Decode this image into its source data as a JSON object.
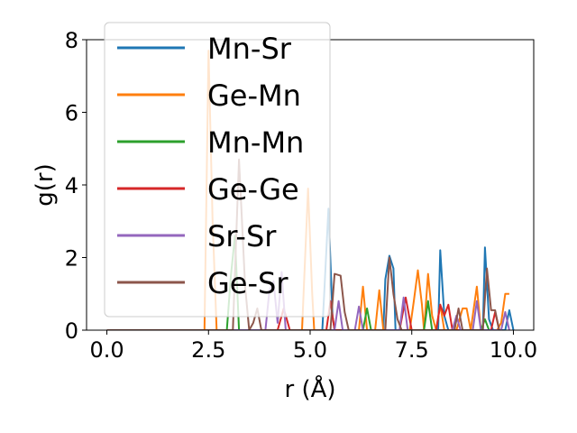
{
  "chart_data": {
    "type": "line",
    "title": "",
    "xlabel": "r (Å)",
    "ylabel": "g(r)",
    "xlim": [
      -0.5,
      10.5
    ],
    "ylim": [
      0,
      8
    ],
    "xticks": [
      0.0,
      2.5,
      5.0,
      7.5,
      10.0
    ],
    "xtick_labels": [
      "0.0",
      "2.5",
      "5.0",
      "7.5",
      "10.0"
    ],
    "yticks": [
      0,
      2,
      4,
      6,
      8
    ],
    "ytick_labels": [
      "0",
      "2",
      "4",
      "6",
      "8"
    ],
    "grid": false,
    "legend_position": "upper-left",
    "series": [
      {
        "name": "Mn-Sr",
        "color": "#1f77b4",
        "x": [
          0,
          5.2,
          5.3,
          5.35,
          5.45,
          5.55,
          5.6,
          6.8,
          6.85,
          6.95,
          7.05,
          7.1,
          8.15,
          8.2,
          8.3,
          8.4,
          9.25,
          9.3,
          9.4,
          9.5,
          9.8,
          9.9,
          10.0
        ],
        "y": [
          0,
          0,
          0,
          1.1,
          3.35,
          0.4,
          0,
          0,
          1.4,
          2.05,
          1.7,
          0,
          0,
          2.2,
          0.4,
          0,
          0,
          2.28,
          0.3,
          0,
          0,
          0.55,
          0
        ]
      },
      {
        "name": "Ge-Mn",
        "color": "#ff7f0e",
        "x": [
          0,
          2.4,
          2.5,
          2.6,
          2.7,
          4.8,
          4.95,
          5.05,
          5.1,
          6.2,
          6.3,
          6.4,
          6.6,
          6.7,
          6.8,
          7.45,
          7.55,
          7.65,
          7.75,
          7.8,
          7.9,
          8.0,
          8.1,
          8.2,
          8.3,
          8.6,
          8.75,
          8.85,
          8.95,
          9.1,
          9.2,
          9.3,
          9.6,
          9.7,
          9.8,
          9.9
        ],
        "y": [
          0,
          0,
          7.7,
          3.0,
          0,
          0,
          3.9,
          1.0,
          0,
          0,
          1.2,
          0,
          0,
          1.1,
          0,
          0,
          0.8,
          1.65,
          0.7,
          0,
          1.55,
          0.4,
          0,
          0.7,
          0,
          0,
          0.6,
          0.6,
          0,
          1.2,
          0,
          0,
          0,
          0.2,
          1.0,
          1.0
        ]
      },
      {
        "name": "Mn-Mn",
        "color": "#2ca02c",
        "x": [
          0,
          2.95,
          3.05,
          3.15,
          3.25,
          6.3,
          6.4,
          6.5,
          7.8,
          7.9,
          8.0,
          9.2,
          9.3,
          9.4
        ],
        "y": [
          0,
          0,
          1.5,
          2.6,
          0,
          0,
          0.6,
          0,
          0,
          0.8,
          0,
          0,
          0.3,
          0
        ]
      },
      {
        "name": "Ge-Ge",
        "color": "#d62728",
        "x": [
          0,
          4.2,
          4.35,
          4.5,
          5.4,
          5.5,
          5.6,
          7.2,
          7.35,
          7.5,
          8.1,
          8.2,
          8.3,
          8.4,
          8.5,
          9.45,
          9.55,
          9.65
        ],
        "y": [
          0,
          0,
          0.6,
          0,
          0,
          0.8,
          0,
          0,
          0.9,
          0,
          0,
          0.7,
          0.4,
          0.7,
          0,
          0,
          0.5,
          0
        ]
      },
      {
        "name": "Sr-Sr",
        "color": "#9467bd",
        "x": [
          0,
          3.9,
          4.0,
          4.1,
          4.2,
          4.3,
          4.4,
          5.6,
          5.7,
          5.8,
          6.1,
          6.2,
          6.3,
          7.2,
          7.3,
          7.4,
          8.5,
          8.6,
          8.7,
          9.0,
          9.1,
          9.2,
          9.7,
          9.8,
          9.9
        ],
        "y": [
          0,
          0,
          1.1,
          1.35,
          0.2,
          1.6,
          0,
          0,
          0.8,
          0,
          0,
          0.65,
          0,
          0,
          0.9,
          0,
          0,
          0.4,
          0,
          0,
          0.8,
          0,
          0,
          0.5,
          0
        ]
      },
      {
        "name": "Ge-Sr",
        "color": "#8c564b",
        "x": [
          0,
          3.1,
          3.25,
          3.4,
          3.5,
          3.6,
          3.7,
          3.8,
          5.5,
          5.6,
          5.75,
          5.85,
          5.95,
          6.85,
          6.95,
          7.05,
          7.15,
          7.25,
          8.55,
          8.65,
          8.75,
          9.25,
          9.35,
          9.45,
          9.55,
          9.65
        ],
        "y": [
          0,
          0,
          4.7,
          1.2,
          0,
          0.2,
          0.6,
          0,
          0,
          1.55,
          1.5,
          0.5,
          0,
          0,
          2.0,
          1.0,
          0.3,
          0,
          0,
          0.6,
          0,
          0,
          1.7,
          0.55,
          0.55,
          0
        ]
      }
    ]
  }
}
